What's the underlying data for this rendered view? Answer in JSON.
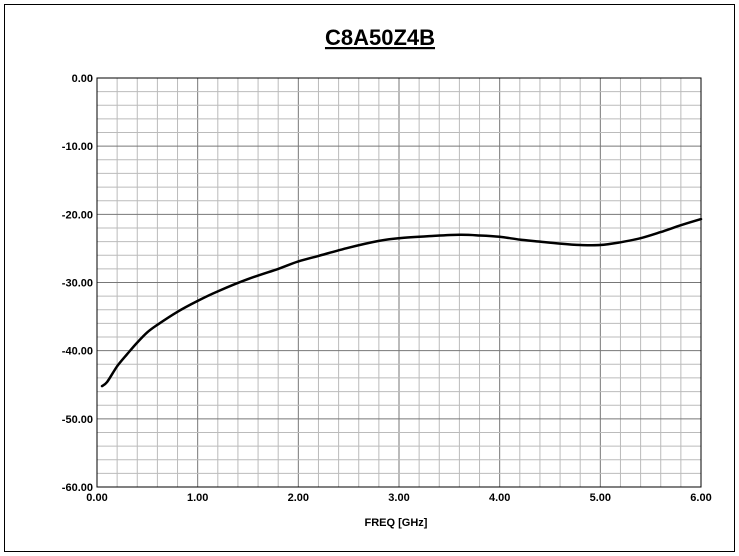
{
  "chart_data": {
    "type": "line",
    "title": "C8A50Z4B",
    "xlabel": "FREQ [GHz]",
    "ylabel": "",
    "xlim": [
      0,
      6
    ],
    "ylim": [
      -60,
      0
    ],
    "x_ticks": [
      "0.00",
      "1.00",
      "2.00",
      "3.00",
      "4.00",
      "5.00",
      "6.00"
    ],
    "y_ticks": [
      "0.00",
      "-10.00",
      "-20.00",
      "-30.00",
      "-40.00",
      "-50.00",
      "-60.00"
    ],
    "grid": true,
    "legend": "none",
    "line_color": "#000000",
    "series": [
      {
        "x": [
          0.05,
          0.1,
          0.2,
          0.3,
          0.4,
          0.5,
          0.6,
          0.8,
          1.0,
          1.2,
          1.5,
          1.8,
          2.0,
          2.2,
          2.5,
          2.8,
          3.0,
          3.3,
          3.6,
          3.8,
          4.0,
          4.2,
          4.4,
          4.6,
          4.8,
          5.0,
          5.2,
          5.4,
          5.6,
          5.8,
          6.0
        ],
        "y": [
          -45.2,
          -44.6,
          -42.3,
          -40.5,
          -38.8,
          -37.3,
          -36.2,
          -34.3,
          -32.7,
          -31.3,
          -29.5,
          -28.0,
          -26.9,
          -26.1,
          -24.9,
          -23.9,
          -23.5,
          -23.2,
          -23.0,
          -23.1,
          -23.3,
          -23.7,
          -24.0,
          -24.3,
          -24.5,
          -24.5,
          -24.1,
          -23.5,
          -22.6,
          -21.6,
          -20.7
        ]
      }
    ]
  }
}
